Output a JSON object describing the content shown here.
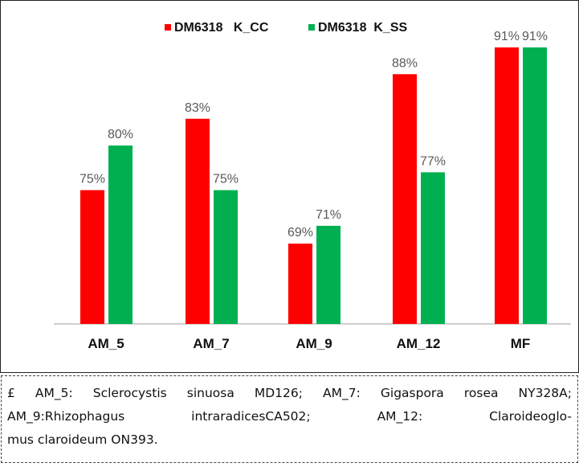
{
  "chart_data": {
    "type": "bar",
    "categories": [
      "AM_5",
      "AM_7",
      "AM_9",
      "AM_12",
      "MF"
    ],
    "series": [
      {
        "name": "DM6318   K_CC",
        "color": "#ff0000",
        "values": [
          75,
          83,
          69,
          88,
          91
        ],
        "labels": [
          "75%",
          "83%",
          "69%",
          "88%",
          "91%"
        ]
      },
      {
        "name": "DM6318  K_SS",
        "color": "#00b050",
        "values": [
          80,
          75,
          71,
          77,
          91
        ],
        "labels": [
          "80%",
          "75%",
          "71%",
          "77%",
          "91%"
        ]
      }
    ],
    "title": "",
    "xlabel": "",
    "ylabel": "",
    "ylim": [
      60,
      92
    ],
    "grid": false,
    "legend": "top-center"
  },
  "caption": {
    "lines": [
      "£ AM_5: Sclerocystis sinuosa MD126;  AM_7: Gigaspora rosea NY328A;",
      "AM_9:Rhizophagus intraradicesCA502; AM_12: Claroideoglo-",
      "mus claroideum ON393."
    ]
  }
}
